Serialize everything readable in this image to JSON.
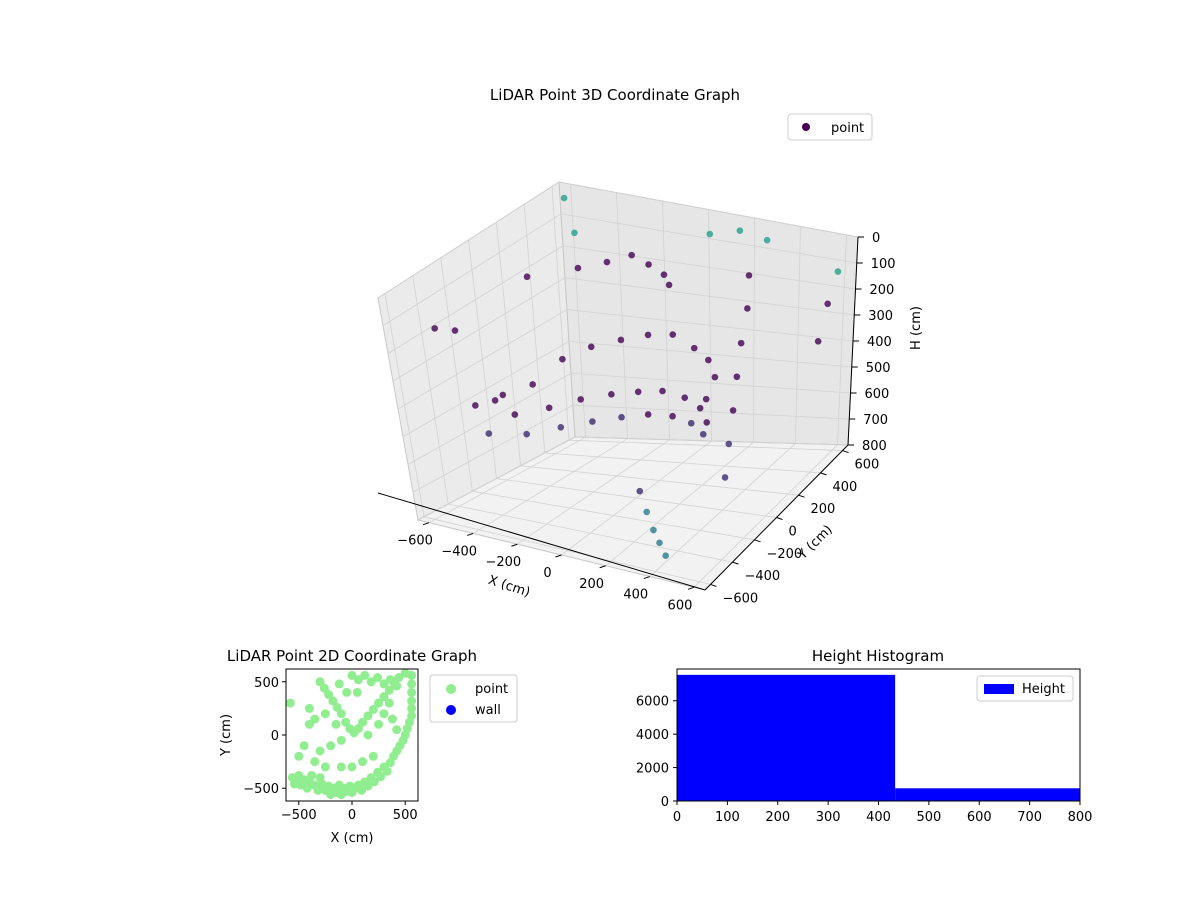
{
  "chart_data": [
    {
      "type": "scatter",
      "projection": "3d",
      "title": "LiDAR Point 3D Coordinate Graph",
      "xlabel": "X (cm)",
      "ylabel": "Y (cm)",
      "zlabel": "H (cm)",
      "x_ticks": [
        "−600",
        "−400",
        "−200",
        "0",
        "200",
        "400",
        "600"
      ],
      "y_ticks": [
        "−600",
        "−400",
        "−200",
        "0",
        "200",
        "400",
        "600"
      ],
      "z_ticks": [
        "0",
        "100",
        "200",
        "300",
        "400",
        "500",
        "600",
        "700",
        "800"
      ],
      "xlim": [
        -650,
        650
      ],
      "ylim": [
        -650,
        650
      ],
      "zlim": [
        0,
        800
      ],
      "z_axis_inverted": true,
      "legend": {
        "placement": "top-right",
        "entries": [
          "point"
        ]
      },
      "colormap": "viridis",
      "series": [
        {
          "name": "point",
          "color": "#440154",
          "points": [
            [
              -500,
              -520,
              120
            ],
            [
              -470,
              -430,
              150
            ],
            [
              -380,
              -300,
              400
            ],
            [
              -300,
              -200,
              380
            ],
            [
              -200,
              -120,
              300
            ],
            [
              -100,
              -60,
              260
            ],
            [
              0,
              0,
              240
            ],
            [
              100,
              40,
              220
            ],
            [
              200,
              60,
              210
            ],
            [
              300,
              50,
              240
            ],
            [
              380,
              20,
              260
            ],
            [
              430,
              -20,
              300
            ],
            [
              420,
              -80,
              360
            ],
            [
              -450,
              -400,
              420
            ],
            [
              -350,
              -280,
              470
            ],
            [
              -250,
              -180,
              460
            ],
            [
              -150,
              -100,
              440
            ],
            [
              -50,
              -30,
              430
            ],
            [
              50,
              10,
              420
            ],
            [
              150,
              30,
              410
            ],
            [
              250,
              30,
              420
            ],
            [
              330,
              10,
              440
            ],
            [
              380,
              -30,
              470
            ],
            [
              -420,
              -380,
              520
            ],
            [
              -320,
              -260,
              540
            ],
            [
              -220,
              -160,
              530
            ],
            [
              -120,
              -80,
              520
            ],
            [
              -20,
              -20,
              510
            ],
            [
              80,
              20,
              500
            ],
            [
              180,
              40,
              500
            ],
            [
              270,
              30,
              510
            ],
            [
              340,
              0,
              530
            ],
            [
              -300,
              200,
              100
            ],
            [
              -200,
              250,
              80
            ],
            [
              -120,
              300,
              60
            ],
            [
              -60,
              320,
              90
            ],
            [
              0,
              330,
              120
            ],
            [
              40,
              300,
              140
            ],
            [
              400,
              300,
              50
            ],
            [
              420,
              250,
              150
            ],
            [
              430,
              180,
              250
            ],
            [
              440,
              120,
              350
            ],
            [
              450,
              60,
              450
            ],
            [
              455,
              0,
              550
            ],
            [
              460,
              -60,
              650
            ],
            [
              200,
              -300,
              650
            ],
            [
              250,
              -350,
              700
            ],
            [
              300,
              -400,
              740
            ],
            [
              350,
              -450,
              760
            ],
            [
              400,
              -500,
              780
            ],
            [
              -600,
              300,
              200
            ],
            [
              -500,
              500,
              100
            ],
            [
              -550,
              -100,
              500
            ],
            [
              -600,
              600,
              30
            ],
            [
              100,
              500,
              20
            ],
            [
              200,
              550,
              10
            ],
            [
              300,
              580,
              40
            ],
            [
              600,
              600,
              120
            ],
            [
              620,
              500,
              200
            ],
            [
              640,
              400,
              300
            ]
          ]
        }
      ]
    },
    {
      "type": "scatter",
      "title": "LiDAR Point 2D Coordinate Graph",
      "xlabel": "X (cm)",
      "ylabel": "Y (cm)",
      "x_ticks": [
        -500,
        0,
        500
      ],
      "y_ticks": [
        -500,
        0,
        500
      ],
      "xlim": [
        -620,
        620
      ],
      "ylim": [
        -620,
        620
      ],
      "grid": false,
      "legend": {
        "placement": "outside-right",
        "entries": [
          "point",
          "wall"
        ]
      },
      "series": [
        {
          "name": "point",
          "color": "#90ee90",
          "points": [
            [
              -580,
              300
            ],
            [
              -560,
              -400
            ],
            [
              -540,
              -460
            ],
            [
              -520,
              -430
            ],
            [
              -500,
              -380
            ],
            [
              -480,
              -470
            ],
            [
              -450,
              -420
            ],
            [
              -420,
              -500
            ],
            [
              -400,
              -440
            ],
            [
              -380,
              -380
            ],
            [
              -350,
              -470
            ],
            [
              -320,
              -520
            ],
            [
              -300,
              -400
            ],
            [
              -280,
              -460
            ],
            [
              -250,
              -520
            ],
            [
              -220,
              -480
            ],
            [
              -200,
              -560
            ],
            [
              -170,
              -500
            ],
            [
              -150,
              -540
            ],
            [
              -120,
              -470
            ],
            [
              -100,
              -560
            ],
            [
              -80,
              -500
            ],
            [
              -50,
              -530
            ],
            [
              -20,
              -480
            ],
            [
              0,
              -540
            ],
            [
              30,
              -500
            ],
            [
              60,
              -470
            ],
            [
              90,
              -520
            ],
            [
              120,
              -440
            ],
            [
              150,
              -480
            ],
            [
              180,
              -400
            ],
            [
              210,
              -440
            ],
            [
              240,
              -350
            ],
            [
              270,
              -390
            ],
            [
              300,
              -300
            ],
            [
              330,
              -340
            ],
            [
              360,
              -260
            ],
            [
              390,
              -200
            ],
            [
              420,
              -150
            ],
            [
              450,
              -100
            ],
            [
              480,
              -50
            ],
            [
              500,
              0
            ],
            [
              520,
              60
            ],
            [
              540,
              120
            ],
            [
              560,
              180
            ],
            [
              560,
              250
            ],
            [
              560,
              320
            ],
            [
              560,
              400
            ],
            [
              560,
              480
            ],
            [
              560,
              560
            ],
            [
              500,
              580
            ],
            [
              440,
              540
            ],
            [
              400,
              480
            ],
            [
              350,
              420
            ],
            [
              300,
              360
            ],
            [
              250,
              300
            ],
            [
              200,
              240
            ],
            [
              150,
              180
            ],
            [
              100,
              120
            ],
            [
              60,
              60
            ],
            [
              20,
              20
            ],
            [
              -20,
              60
            ],
            [
              -60,
              120
            ],
            [
              -100,
              200
            ],
            [
              -140,
              260
            ],
            [
              -180,
              320
            ],
            [
              -220,
              380
            ],
            [
              -260,
              440
            ],
            [
              -300,
              500
            ],
            [
              -350,
              150
            ],
            [
              -400,
              100
            ],
            [
              -450,
              -100
            ],
            [
              -500,
              -200
            ],
            [
              -300,
              -150
            ],
            [
              -200,
              -100
            ],
            [
              -100,
              -50
            ],
            [
              0,
              560
            ],
            [
              60,
              520
            ],
            [
              120,
              560
            ],
            [
              180,
              500
            ],
            [
              240,
              540
            ],
            [
              300,
              480
            ],
            [
              360,
              520
            ],
            [
              420,
              460
            ],
            [
              -150,
              100
            ],
            [
              -250,
              200
            ],
            [
              -400,
              250
            ],
            [
              -350,
              -250
            ],
            [
              -250,
              -300
            ],
            [
              200,
              -200
            ],
            [
              100,
              -250
            ],
            [
              0,
              -300
            ],
            [
              -100,
              -300
            ],
            [
              150,
              0
            ],
            [
              250,
              100
            ],
            [
              300,
              200
            ],
            [
              350,
              300
            ],
            [
              380,
              150
            ],
            [
              420,
              50
            ],
            [
              -50,
              400
            ],
            [
              50,
              400
            ],
            [
              -120,
              480
            ]
          ]
        },
        {
          "name": "wall",
          "color": "#0000ff",
          "points": []
        }
      ]
    },
    {
      "type": "bar",
      "histogram": true,
      "title": "Height Histogram",
      "xlabel": "",
      "ylabel": "",
      "x_ticks": [
        0,
        100,
        200,
        300,
        400,
        500,
        600,
        700,
        800
      ],
      "y_ticks": [
        0,
        2000,
        4000,
        6000
      ],
      "xlim": [
        0,
        800
      ],
      "ylim": [
        0,
        7900
      ],
      "legend": {
        "placement": "top-right",
        "entries": [
          "Height"
        ]
      },
      "series": [
        {
          "name": "Height",
          "color": "#0000ff",
          "bins": [
            {
              "x0": 0,
              "x1": 433,
              "value": 7550
            },
            {
              "x0": 433,
              "x1": 800,
              "value": 760
            }
          ]
        }
      ]
    }
  ]
}
